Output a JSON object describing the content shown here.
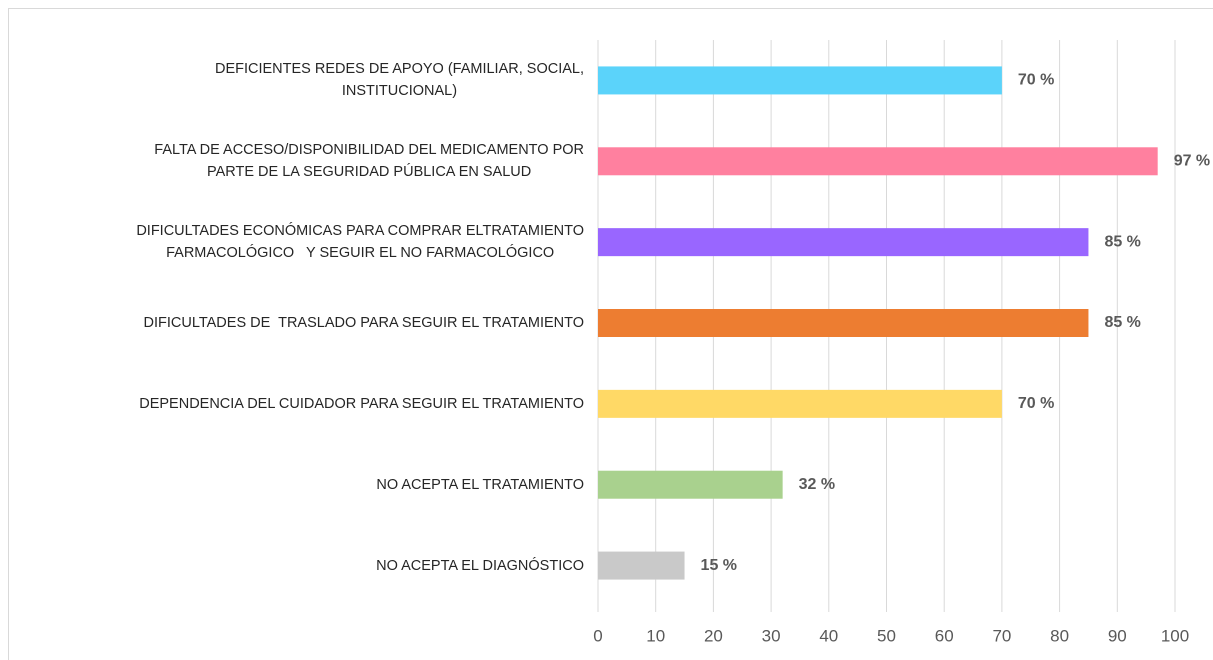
{
  "chart_data": {
    "type": "barh",
    "categories": [
      "DEFICIENTES REDES DE APOYO (FAMILIAR, SOCIAL,\nINSTITUCIONAL)",
      "FALTA DE ACCESO/DISPONIBILIDAD DEL MEDICAMENTO POR\nPARTE DE LA SEGURIDAD PÚBLICA EN SALUD",
      "DIFICULTADES ECONÓMICAS PARA COMPRAR ELTRATAMIENTO\nFARMACOLÓGICO   Y SEGUIR EL NO FARMACOLÓGICO",
      "DIFICULTADES DE  TRASLADO PARA SEGUIR EL TRATAMIENTO",
      "DEPENDENCIA DEL CUIDADOR PARA SEGUIR EL TRATAMIENTO",
      "NO ACEPTA EL TRATAMIENTO",
      "NO ACEPTA EL DIAGNÓSTICO"
    ],
    "values": [
      70,
      97,
      85,
      85,
      70,
      32,
      15
    ],
    "value_labels": [
      "70 %",
      "97 %",
      "85 %",
      "85 %",
      "70 %",
      "32 %",
      "15 %"
    ],
    "colors": [
      "#5bd3fa",
      "#ff809f",
      "#9966ff",
      "#ed7d31",
      "#ffd966",
      "#a9d18e",
      "#c9c9c9"
    ],
    "xlim": [
      0,
      100
    ],
    "xticks": [
      0,
      10,
      20,
      30,
      40,
      50,
      60,
      70,
      80,
      90,
      100
    ],
    "grid": true
  }
}
